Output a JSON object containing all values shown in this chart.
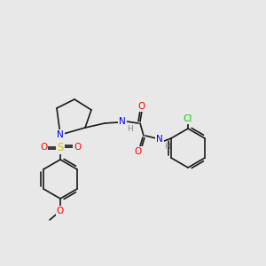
{
  "bg_color": "#e8e8e8",
  "bond_color": "#1a1a1a",
  "atom_colors": {
    "N": "#0000ff",
    "O": "#ff0000",
    "S": "#cccc00",
    "Cl": "#00cc00",
    "H": "#888888",
    "C": "#1a1a1a"
  },
  "font_size": 7.5,
  "bond_width": 1.2
}
